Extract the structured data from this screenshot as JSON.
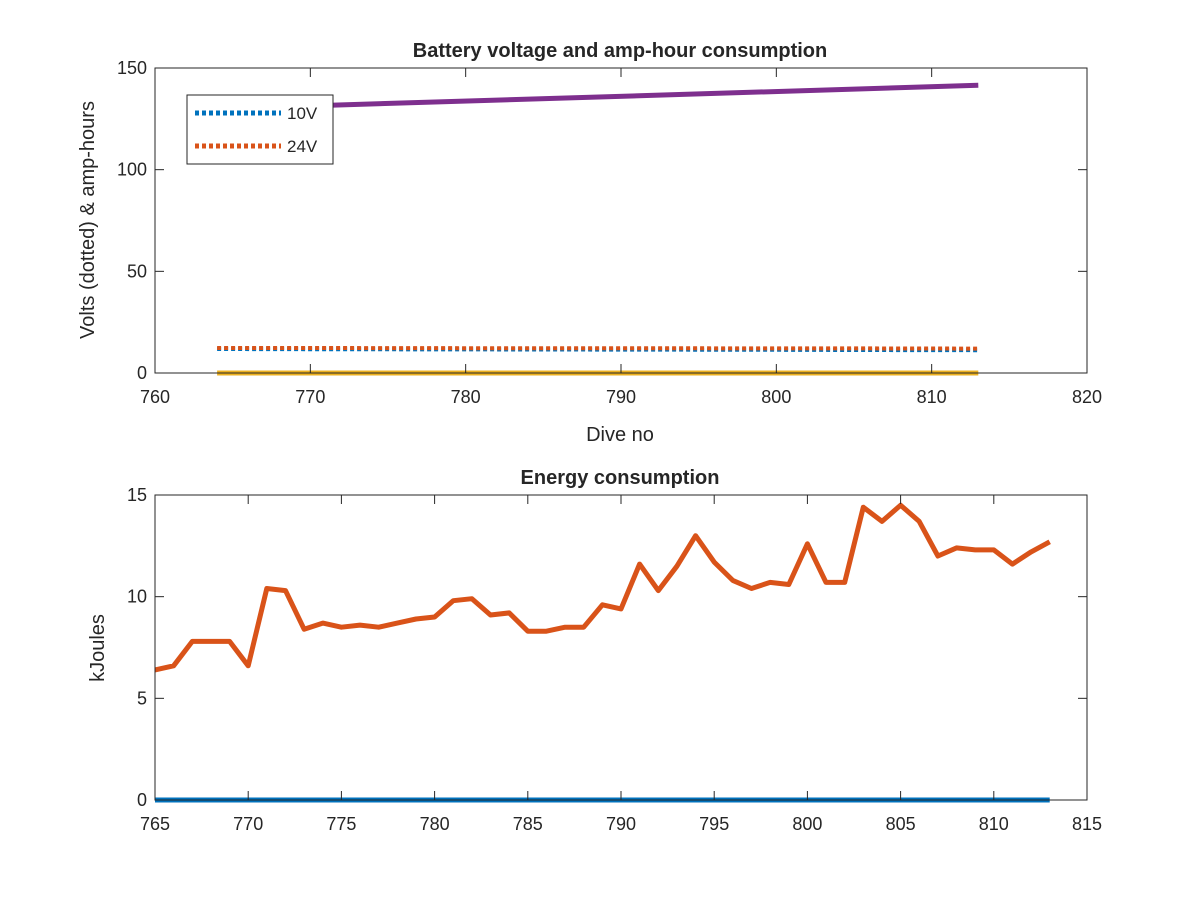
{
  "chart_data": [
    {
      "type": "line",
      "title": "Battery voltage and amp-hour consumption",
      "xlabel": "Dive no",
      "ylabel": "Volts (dotted) & amp-hours",
      "xlim": [
        760,
        820
      ],
      "ylim": [
        0,
        150
      ],
      "xticks": [
        760,
        770,
        780,
        790,
        800,
        810,
        820
      ],
      "yticks": [
        0,
        50,
        100,
        150
      ],
      "grid": false,
      "legend_position": "top-left",
      "series": [
        {
          "name": "10V",
          "style": "dotted",
          "color": "#0072BD",
          "x": [
            764,
            770,
            780,
            790,
            800,
            805,
            813
          ],
          "y": [
            11.8,
            11.7,
            11.6,
            11.5,
            11.4,
            11.3,
            11.2
          ]
        },
        {
          "name": "24V",
          "style": "dotted",
          "color": "#D95319",
          "x": [
            764,
            770,
            780,
            790,
            800,
            805,
            813
          ],
          "y": [
            12.3,
            12.3,
            12.2,
            12.2,
            12.1,
            12.1,
            12.0
          ]
        },
        {
          "style": "solid",
          "color": "#EDB120",
          "x": [
            764,
            813
          ],
          "y": [
            0,
            0
          ]
        },
        {
          "style": "solid",
          "color": "#7E2F8E",
          "x": [
            764,
            813
          ],
          "y": [
            130,
            141.5
          ]
        }
      ]
    },
    {
      "type": "line",
      "title": "Energy consumption",
      "xlabel": "",
      "ylabel": "kJoules",
      "xlim": [
        765,
        815
      ],
      "ylim": [
        0,
        15
      ],
      "xticks": [
        765,
        770,
        775,
        780,
        785,
        790,
        795,
        800,
        805,
        810,
        815
      ],
      "yticks": [
        0,
        5,
        10,
        15
      ],
      "grid": false,
      "series": [
        {
          "style": "solid",
          "color": "#0072BD",
          "x": [
            765,
            813
          ],
          "y": [
            0,
            0
          ]
        },
        {
          "style": "solid",
          "color": "#D95319",
          "x": [
            765,
            766,
            767,
            768,
            769,
            770,
            771,
            772,
            773,
            774,
            775,
            776,
            777,
            778,
            779,
            780,
            781,
            782,
            783,
            784,
            785,
            786,
            787,
            788,
            789,
            790,
            791,
            792,
            793,
            794,
            795,
            796,
            797,
            798,
            799,
            800,
            801,
            802,
            803,
            804,
            805,
            806,
            807,
            808,
            809,
            810,
            811,
            812,
            813
          ],
          "y": [
            6.4,
            6.6,
            7.8,
            7.8,
            7.8,
            6.6,
            10.4,
            10.3,
            8.4,
            8.7,
            8.5,
            8.6,
            8.5,
            8.7,
            8.9,
            9.0,
            9.8,
            9.9,
            9.1,
            9.2,
            8.3,
            8.3,
            8.5,
            8.5,
            9.6,
            9.4,
            11.6,
            10.3,
            11.5,
            13.0,
            11.7,
            10.8,
            10.4,
            10.7,
            10.6,
            12.6,
            10.7,
            10.7,
            14.4,
            13.7,
            14.5,
            13.7,
            12.0,
            12.4,
            12.3,
            12.3,
            11.6,
            12.2,
            12.7
          ]
        }
      ]
    }
  ]
}
